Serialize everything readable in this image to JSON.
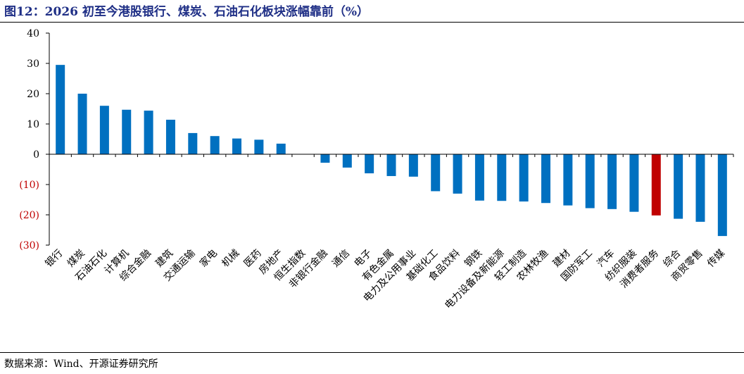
{
  "title": "图12：2026 初至今港股银行、煤炭、石油石化板块涨幅靠前（%）",
  "source": "数据来源：Wind、开源证券研究所",
  "colors": {
    "normal": "#0070c0",
    "highlight": "#c00000",
    "negative_tick": "#c00000",
    "positive_tick": "#000000"
  },
  "chart_data": {
    "type": "bar",
    "title": "图12：2026 初至今港股银行、煤炭、石油石化板块涨幅靠前（%）",
    "xlabel": "",
    "ylabel": "",
    "ylim": [
      -30,
      40
    ],
    "yticks": [
      40,
      30,
      20,
      10,
      0,
      -10,
      -20,
      -30
    ],
    "ytick_labels": [
      "40",
      "30",
      "20",
      "10",
      "0",
      "(10)",
      "(20)",
      "(30)"
    ],
    "grid": false,
    "legend": "none",
    "categories": [
      "银行",
      "煤炭",
      "石油石化",
      "计算机",
      "综合金融",
      "建筑",
      "交通运输",
      "家电",
      "机械",
      "医药",
      "房地产",
      "恒生指数",
      "非银行金融",
      "通信",
      "电子",
      "有色金属",
      "电力及公用事业",
      "基础化工",
      "食品饮料",
      "钢铁",
      "电力设备及新能源",
      "轻工制造",
      "农林牧渔",
      "建材",
      "国防军工",
      "汽车",
      "纺织服装",
      "消费者服务",
      "综合",
      "商贸零售",
      "传媒"
    ],
    "values": [
      29.5,
      20.0,
      16.0,
      14.7,
      14.4,
      11.4,
      7.0,
      6.0,
      5.2,
      4.8,
      3.5,
      0.0,
      -2.8,
      -4.4,
      -6.3,
      -7.2,
      -7.4,
      -12.2,
      -13.0,
      -15.3,
      -15.4,
      -15.6,
      -16.1,
      -16.9,
      -17.8,
      -18.1,
      -19.0,
      -20.2,
      -21.3,
      -22.3,
      -27.0
    ],
    "highlight_index": 27
  }
}
